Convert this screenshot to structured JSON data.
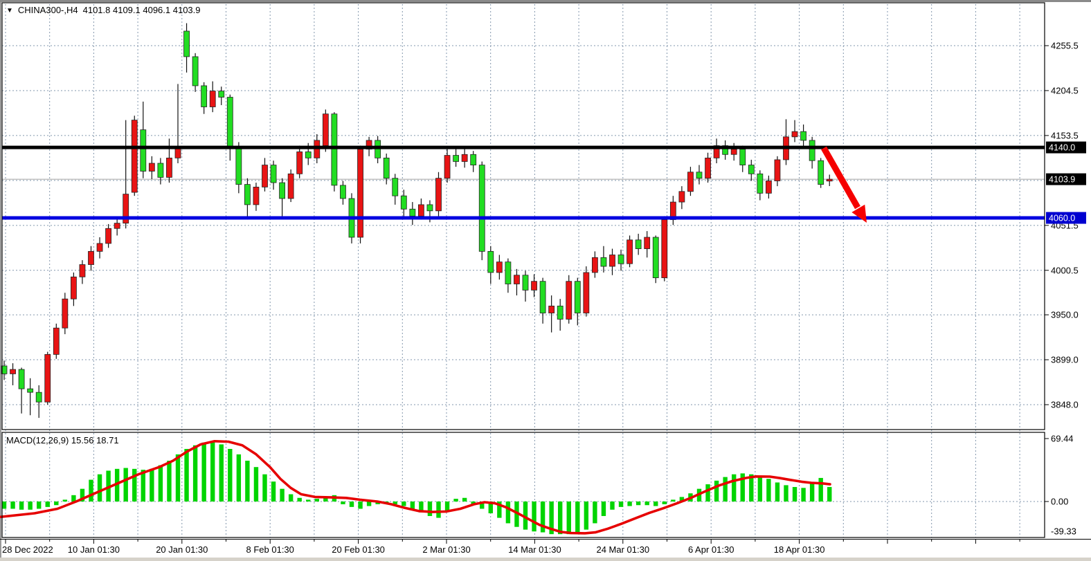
{
  "header": {
    "symbol_marker": "▼",
    "symbol_period": "CHINA300-,H4",
    "ohlc_text": "4101.8 4109.1 4096.1 4103.9",
    "open": 4101.8,
    "high": 4109.1,
    "low": 4096.1,
    "close": 4103.9
  },
  "macd_panel": {
    "label": "MACD(12,26,9) 15.56 18.71",
    "macd_value": 15.56,
    "signal_value": 18.71,
    "scale_labels": [
      {
        "text": "69.44",
        "value": 69.44
      },
      {
        "text": "0.00",
        "value": 0
      },
      {
        "text": "-39.33",
        "value": -39.33
      }
    ]
  },
  "price_axis": {
    "labels": [
      {
        "text": "4255.5",
        "price": 4255.5
      },
      {
        "text": "4204.5",
        "price": 4204.5
      },
      {
        "text": "4153.5",
        "price": 4153.5
      },
      {
        "text": "4051.5",
        "price": 4051.5
      },
      {
        "text": "4000.5",
        "price": 4000.5
      },
      {
        "text": "3950.0",
        "price": 3950.0
      },
      {
        "text": "3899.0",
        "price": 3899.0
      },
      {
        "text": "3848.0",
        "price": 3848.0
      }
    ],
    "badges": [
      {
        "text": "4140.0",
        "price": 4140.0,
        "bg": "#000000",
        "fg": "#ffffff"
      },
      {
        "text": "4103.9",
        "price": 4103.9,
        "bg": "#000000",
        "fg": "#ffffff"
      },
      {
        "text": "4060.0",
        "price": 4060.0,
        "bg": "#0000d0",
        "fg": "#ffffff"
      }
    ]
  },
  "time_axis": {
    "labels": [
      {
        "text": "28 Dec 2022",
        "grid_index": 0
      },
      {
        "text": "10 Jan 01:30",
        "grid_index": 2
      },
      {
        "text": "20 Jan 01:30",
        "grid_index": 4
      },
      {
        "text": "8 Feb 01:30",
        "grid_index": 6
      },
      {
        "text": "20 Feb 01:30",
        "grid_index": 8
      },
      {
        "text": "2 Mar 01:30",
        "grid_index": 10
      },
      {
        "text": "14 Mar 01:30",
        "grid_index": 12
      },
      {
        "text": "24 Mar 01:30",
        "grid_index": 14
      },
      {
        "text": "6 Apr 01:30",
        "grid_index": 16
      },
      {
        "text": "18 Apr 01:30",
        "grid_index": 18
      }
    ]
  },
  "chart_data": {
    "type": "candlestick",
    "title": "CHINA300-,H4",
    "symbol": "CHINA300-",
    "timeframe": "H4",
    "up_color": "#e81414",
    "down_color": "#22dd22",
    "wick_color": "#111111",
    "grid_color": "#8296ac",
    "price_gridlines": [
      4255.5,
      4204.5,
      4153.5,
      4102.5,
      4051.5,
      4000.5,
      3950.0,
      3899.0,
      3848.0
    ],
    "current_price": 4103.9,
    "hlines": [
      {
        "price": 4140.0,
        "color": "#000000",
        "width": 5,
        "role": "resistance"
      },
      {
        "price": 4060.0,
        "color": "#0000e0",
        "width": 5,
        "role": "support"
      }
    ],
    "candles": [
      [
        3892,
        3898,
        3876,
        3883
      ],
      [
        3883,
        3895,
        3870,
        3888
      ],
      [
        3888,
        3890,
        3838,
        3866
      ],
      [
        3866,
        3878,
        3836,
        3862
      ],
      [
        3862,
        3870,
        3833,
        3851
      ],
      [
        3851,
        3908,
        3848,
        3905
      ],
      [
        3905,
        3940,
        3900,
        3935
      ],
      [
        3935,
        3975,
        3928,
        3968
      ],
      [
        3968,
        3998,
        3960,
        3993
      ],
      [
        3993,
        4012,
        3985,
        4007
      ],
      [
        4007,
        4028,
        4000,
        4022
      ],
      [
        4022,
        4038,
        4014,
        4031
      ],
      [
        4031,
        4053,
        4026,
        4048
      ],
      [
        4048,
        4060,
        4040,
        4054
      ],
      [
        4054,
        4171,
        4048,
        4087
      ],
      [
        4089,
        4176,
        4085,
        4171
      ],
      [
        4160,
        4192,
        4105,
        4113
      ],
      [
        4113,
        4130,
        4104,
        4122
      ],
      [
        4122,
        4128,
        4098,
        4106
      ],
      [
        4106,
        4150,
        4100,
        4128
      ],
      [
        4128,
        4212,
        4122,
        4140
      ],
      [
        4272,
        4281,
        4225,
        4243
      ],
      [
        4243,
        4247,
        4203,
        4210
      ],
      [
        4210,
        4214,
        4178,
        4186
      ],
      [
        4186,
        4215,
        4180,
        4204
      ],
      [
        4204,
        4209,
        4188,
        4197
      ],
      [
        4197,
        4200,
        4125,
        4140
      ],
      [
        4140,
        4146,
        4088,
        4098
      ],
      [
        4098,
        4105,
        4058,
        4075
      ],
      [
        4075,
        4100,
        4068,
        4095
      ],
      [
        4095,
        4128,
        4090,
        4120
      ],
      [
        4120,
        4125,
        4092,
        4100
      ],
      [
        4100,
        4105,
        4062,
        4082
      ],
      [
        4082,
        4115,
        4078,
        4110
      ],
      [
        4110,
        4142,
        4105,
        4135
      ],
      [
        4135,
        4145,
        4120,
        4128
      ],
      [
        4128,
        4155,
        4122,
        4148
      ],
      [
        4142,
        4183,
        4135,
        4178
      ],
      [
        4178,
        4180,
        4090,
        4097
      ],
      [
        4097,
        4102,
        4075,
        4082
      ],
      [
        4082,
        4088,
        4031,
        4038
      ],
      [
        4038,
        4142,
        4031,
        4138
      ],
      [
        4138,
        4152,
        4130,
        4148
      ],
      [
        4148,
        4153,
        4122,
        4128
      ],
      [
        4128,
        4133,
        4098,
        4105
      ],
      [
        4105,
        4110,
        4075,
        4085
      ],
      [
        4085,
        4092,
        4058,
        4070
      ],
      [
        4070,
        4078,
        4052,
        4062
      ],
      [
        4062,
        4082,
        4058,
        4075
      ],
      [
        4075,
        4080,
        4055,
        4068
      ],
      [
        4068,
        4112,
        4062,
        4105
      ],
      [
        4105,
        4138,
        4100,
        4131
      ],
      [
        4131,
        4140,
        4118,
        4124
      ],
      [
        4124,
        4139,
        4117,
        4132
      ],
      [
        4132,
        4136,
        4112,
        4120
      ],
      [
        4120,
        4124,
        4012,
        4022
      ],
      [
        4022,
        4028,
        3985,
        3998
      ],
      [
        3998,
        4018,
        3990,
        4010
      ],
      [
        4010,
        4014,
        3975,
        3985
      ],
      [
        3985,
        4002,
        3972,
        3995
      ],
      [
        3995,
        4000,
        3965,
        3978
      ],
      [
        3978,
        3996,
        3970,
        3988
      ],
      [
        3988,
        3992,
        3940,
        3952
      ],
      [
        3952,
        3972,
        3930,
        3960
      ],
      [
        3960,
        3968,
        3932,
        3945
      ],
      [
        3945,
        3995,
        3940,
        3988
      ],
      [
        3988,
        3992,
        3938,
        3952
      ],
      [
        3952,
        4005,
        3948,
        3998
      ],
      [
        3998,
        4022,
        3992,
        4015
      ],
      [
        4015,
        4028,
        3998,
        4005
      ],
      [
        4005,
        4025,
        3995,
        4018
      ],
      [
        4018,
        4024,
        4000,
        4008
      ],
      [
        4008,
        4040,
        4004,
        4035
      ],
      [
        4035,
        4042,
        4018,
        4025
      ],
      [
        4025,
        4045,
        4015,
        4038
      ],
      [
        4038,
        4040,
        3986,
        3992
      ],
      [
        3992,
        4062,
        3988,
        4058
      ],
      [
        4058,
        4085,
        4052,
        4078
      ],
      [
        4078,
        4096,
        4070,
        4090
      ],
      [
        4090,
        4118,
        4085,
        4112
      ],
      [
        4112,
        4120,
        4098,
        4105
      ],
      [
        4105,
        4134,
        4100,
        4128
      ],
      [
        4128,
        4150,
        4122,
        4142
      ],
      [
        4142,
        4148,
        4126,
        4132
      ],
      [
        4132,
        4145,
        4125,
        4138
      ],
      [
        4138,
        4142,
        4112,
        4120
      ],
      [
        4120,
        4126,
        4102,
        4110
      ],
      [
        4110,
        4114,
        4080,
        4088
      ],
      [
        4088,
        4108,
        4082,
        4102
      ],
      [
        4102,
        4130,
        4096,
        4126
      ],
      [
        4126,
        4172,
        4120,
        4152
      ],
      [
        4152,
        4171,
        4146,
        4158
      ],
      [
        4158,
        4166,
        4140,
        4148
      ],
      [
        4148,
        4152,
        4116,
        4125
      ],
      [
        4125,
        4128,
        4094,
        4098
      ],
      [
        4101.8,
        4109.1,
        4096.1,
        4103.9
      ]
    ],
    "macd": {
      "histogram_color": "#00d400",
      "signal_color": "#e60000",
      "histogram": [
        -8,
        -8,
        -9,
        -9,
        -8,
        -6,
        -4,
        2,
        7,
        14,
        24,
        30,
        34,
        36,
        37,
        36,
        35,
        36,
        40,
        45,
        52,
        58,
        62,
        65,
        66,
        63,
        58,
        52,
        45,
        38,
        30,
        22,
        14,
        8,
        4,
        2,
        3,
        5,
        7,
        -3,
        -6,
        -8,
        -5,
        -3,
        -2,
        -3,
        -5,
        -8,
        -12,
        -16,
        -18,
        -10,
        3,
        4,
        -4,
        -8,
        -13,
        -18,
        -24,
        -28,
        -31,
        -33,
        -34,
        -36,
        -36,
        -36,
        -35,
        -31,
        -24,
        -16,
        -9,
        -6,
        -5,
        -4,
        -4,
        -5,
        -3,
        2,
        5,
        9,
        14,
        19,
        23,
        27,
        30,
        31,
        30,
        28,
        25,
        21,
        18,
        16,
        15,
        21,
        26,
        16
      ],
      "signal_points": [
        [
          0,
          -17
        ],
        [
          50,
          -13
        ],
        [
          83,
          -8
        ],
        [
          110,
          0
        ],
        [
          140,
          10
        ],
        [
          170,
          20
        ],
        [
          200,
          30
        ],
        [
          230,
          38
        ],
        [
          250,
          45
        ],
        [
          270,
          55
        ],
        [
          290,
          63
        ],
        [
          310,
          66.5
        ],
        [
          330,
          66
        ],
        [
          350,
          62
        ],
        [
          370,
          52
        ],
        [
          390,
          38
        ],
        [
          405,
          25
        ],
        [
          420,
          15
        ],
        [
          435,
          8
        ],
        [
          455,
          5
        ],
        [
          480,
          4.5
        ],
        [
          500,
          4
        ],
        [
          520,
          2
        ],
        [
          545,
          0
        ],
        [
          565,
          -3
        ],
        [
          585,
          -7
        ],
        [
          605,
          -10.5
        ],
        [
          625,
          -11.5
        ],
        [
          645,
          -11
        ],
        [
          665,
          -8
        ],
        [
          685,
          -3
        ],
        [
          700,
          -0.8
        ],
        [
          715,
          -2
        ],
        [
          730,
          -6
        ],
        [
          748,
          -13
        ],
        [
          765,
          -20
        ],
        [
          780,
          -26
        ],
        [
          795,
          -30
        ],
        [
          810,
          -33.5
        ],
        [
          825,
          -34.8
        ],
        [
          845,
          -35
        ],
        [
          860,
          -34
        ],
        [
          878,
          -30
        ],
        [
          898,
          -24.5
        ],
        [
          918,
          -18.5
        ],
        [
          938,
          -12.5
        ],
        [
          958,
          -7.5
        ],
        [
          978,
          -2
        ],
        [
          998,
          4
        ],
        [
          1018,
          11
        ],
        [
          1038,
          17.5
        ],
        [
          1058,
          22.5
        ],
        [
          1078,
          26
        ],
        [
          1092,
          27.6
        ],
        [
          1112,
          27.5
        ],
        [
          1127,
          25.8
        ],
        [
          1142,
          23.8
        ],
        [
          1158,
          21.8
        ],
        [
          1172,
          20.6
        ],
        [
          1188,
          20
        ],
        [
          1199,
          19
        ]
      ]
    },
    "arrow": {
      "color": "#f50000",
      "from": [
        1190,
        214
      ],
      "to": [
        1239,
        300
      ],
      "tip": [
        1252,
        322
      ]
    }
  }
}
